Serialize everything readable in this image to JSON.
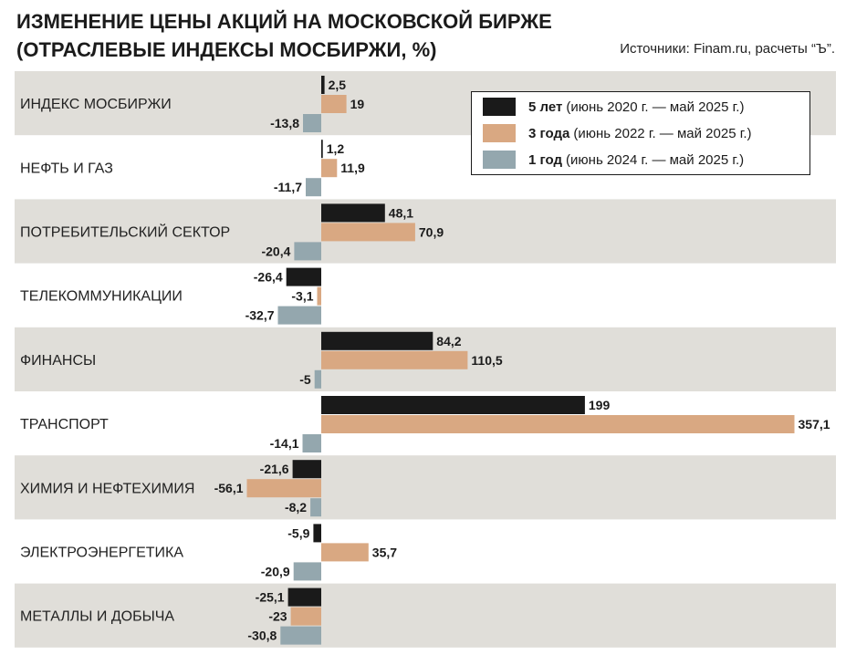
{
  "header": {
    "title_line1": "ИЗМЕНЕНИЕ ЦЕНЫ АКЦИЙ НА МОСКОВСКОЙ БИРЖЕ",
    "title_line2": "(ОТРАСЛЕВЫЕ ИНДЕКСЫ МОСБИРЖИ, %)",
    "source": "Источники: Finam.ru, расчеты “Ъ”."
  },
  "legend": [
    {
      "name": "5 лет",
      "period": "(июнь 2020 г. — май 2025 г.)",
      "color": "#1a1a1a"
    },
    {
      "name": "3 года",
      "period": "(июнь 2022 г. — май 2025 г.)",
      "color": "#d9a882"
    },
    {
      "name": "1 год",
      "period": "(июнь 2024 г. — май 2025 г.)",
      "color": "#94a7ae"
    }
  ],
  "colors": {
    "band": "#e0ded9"
  },
  "chart_data": {
    "type": "bar",
    "orientation": "horizontal",
    "categories": [
      "ИНДЕКС МОСБИРЖИ",
      "НЕФТЬ И ГАЗ",
      "ПОТРЕБИТЕЛЬСКИЙ СЕКТОР",
      "ТЕЛЕКОММУНИКАЦИИ",
      "ФИНАНСЫ",
      "ТРАНСПОРТ",
      "ХИМИЯ И НЕФТЕХИМИЯ",
      "ЭЛЕКТРОЭНЕРГЕТИКА",
      "МЕТАЛЛЫ И ДОБЫЧА"
    ],
    "series": [
      {
        "name": "5 лет",
        "values": [
          2.5,
          1.2,
          48.1,
          -26.4,
          84.2,
          199,
          -21.6,
          -5.9,
          -25.1
        ],
        "labels": [
          "2,5",
          "1,2",
          "48,1",
          "-26,4",
          "84,2",
          "199",
          "-21,6",
          "-5,9",
          "-25,1"
        ]
      },
      {
        "name": "3 года",
        "values": [
          19,
          11.9,
          70.9,
          -3.1,
          110.5,
          357.1,
          -56.1,
          35.7,
          -23
        ],
        "labels": [
          "19",
          "11,9",
          "70,9",
          "-3,1",
          "110,5",
          "357,1",
          "-56,1",
          "35,7",
          "-23"
        ]
      },
      {
        "name": "1 год",
        "values": [
          -13.8,
          -11.7,
          -20.4,
          -32.7,
          -5,
          -14.1,
          -8.2,
          -20.9,
          -30.8
        ],
        "labels": [
          "-13,8",
          "-11,7",
          "-20,4",
          "-32,7",
          "-5",
          "-14,1",
          "-8,2",
          "-20,9",
          "-30,8"
        ]
      }
    ],
    "title": "ИЗМЕНЕНИЕ ЦЕНЫ АКЦИЙ НА МОСКОВСКОЙ БИРЖЕ (ОТРАСЛЕВЫЕ ИНДЕКСЫ МОСБИРЖИ, %)",
    "xlabel": "",
    "ylabel": "",
    "xlim": [
      -60,
      360
    ],
    "grid": false,
    "legend_position": "top-right",
    "banding": "alternating"
  }
}
